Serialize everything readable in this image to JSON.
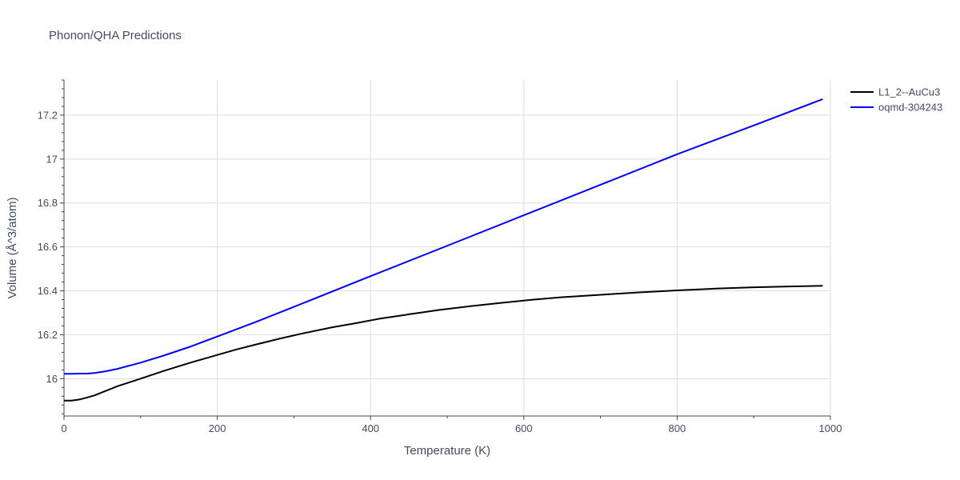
{
  "chart_data": {
    "type": "line",
    "title": "Phonon/QHA Predictions",
    "xlabel": "Temperature (K)",
    "ylabel": "Volume (Å^3/atom)",
    "xlim": [
      0,
      1000
    ],
    "ylim": [
      15.83,
      17.36
    ],
    "x_ticks": [
      0,
      200,
      400,
      600,
      800,
      1000
    ],
    "x_tick_labels": [
      "0",
      "200",
      "400",
      "600",
      "800",
      "1000"
    ],
    "y_ticks": [
      16,
      16.2,
      16.4,
      16.6,
      16.8,
      17,
      17.2
    ],
    "y_tick_labels": [
      "16",
      "16.2",
      "16.4",
      "16.6",
      "16.8",
      "17",
      "17.2"
    ],
    "grid": true,
    "legend_position": "top-right",
    "series": [
      {
        "name": "L1_2--AuCu3",
        "color": "#000000",
        "x": [
          0,
          10,
          20,
          30,
          40,
          50,
          70,
          100,
          130,
          165,
          200,
          225,
          250,
          280,
          310,
          350,
          380,
          410,
          450,
          490,
          530,
          570,
          610,
          650,
          700,
          750,
          800,
          850,
          900,
          950,
          990
        ],
        "y": [
          15.9,
          15.9,
          15.905,
          15.914,
          15.924,
          15.938,
          15.966,
          16.0,
          16.035,
          16.073,
          16.108,
          16.133,
          16.155,
          16.181,
          16.205,
          16.234,
          16.252,
          16.272,
          16.293,
          16.313,
          16.33,
          16.345,
          16.359,
          16.371,
          16.382,
          16.393,
          16.402,
          16.41,
          16.416,
          16.42,
          16.423
        ]
      },
      {
        "name": "oqmd-304243",
        "color": "#0000ff",
        "x": [
          0,
          10,
          20,
          30,
          40,
          55,
          70,
          100,
          130,
          165,
          200,
          250,
          300,
          400,
          500,
          600,
          700,
          800,
          900,
          990
        ],
        "y": [
          16.022,
          16.022,
          16.023,
          16.023,
          16.026,
          16.034,
          16.045,
          16.073,
          16.105,
          16.146,
          16.192,
          16.258,
          16.327,
          16.467,
          16.605,
          16.744,
          16.883,
          17.022,
          17.153,
          17.273
        ]
      }
    ]
  }
}
